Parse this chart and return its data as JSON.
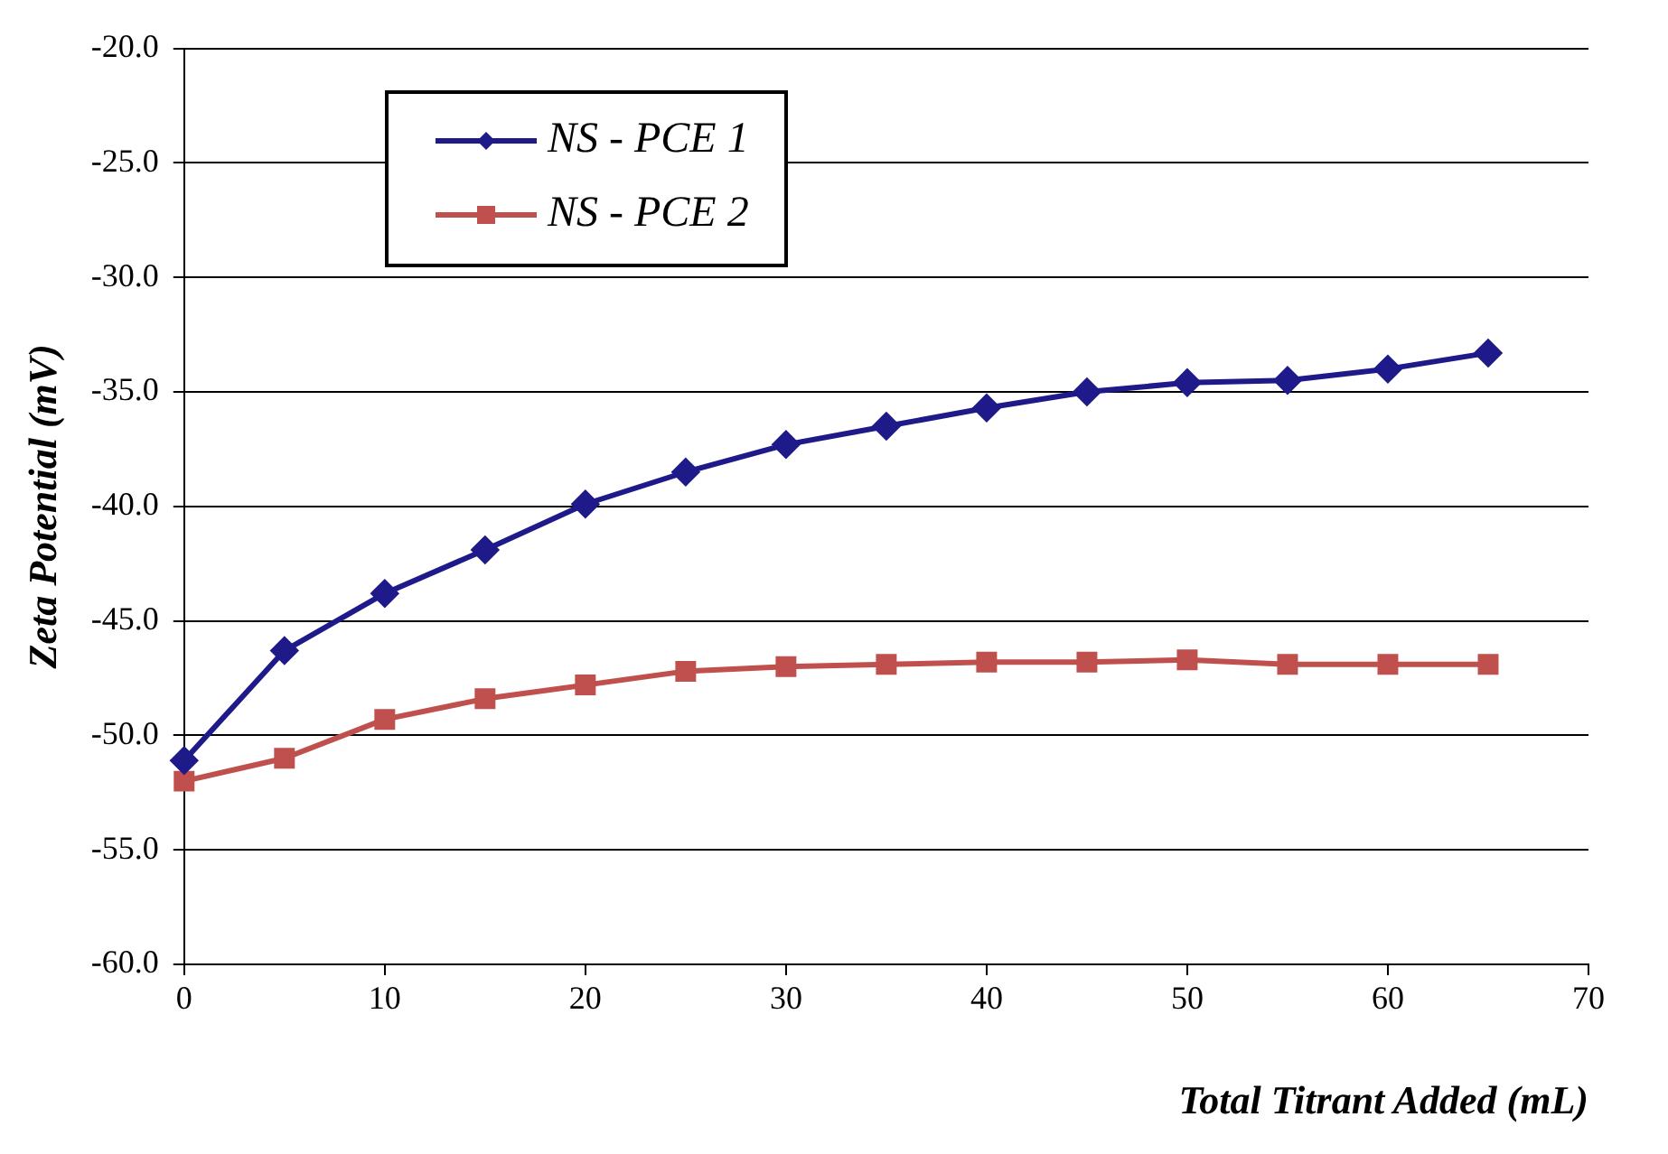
{
  "chart_data": {
    "type": "line",
    "xlabel": "Total Titrant Added (mL)",
    "ylabel": "Zeta Potential (mV)",
    "x": [
      0,
      5,
      10,
      15,
      20,
      25,
      30,
      35,
      40,
      45,
      50,
      55,
      60,
      65
    ],
    "series": [
      {
        "name": "NS - PCE 1",
        "color": "#1f1a8a",
        "marker": "diamond",
        "values": [
          -51.1,
          -46.3,
          -43.8,
          -41.9,
          -39.9,
          -38.5,
          -37.3,
          -36.5,
          -35.7,
          -35.0,
          -34.6,
          -34.5,
          -34.0,
          -33.3
        ]
      },
      {
        "name": "NS - PCE 2",
        "color": "#c0504d",
        "marker": "square",
        "values": [
          -52.0,
          -51.0,
          -49.3,
          -48.4,
          -47.8,
          -47.2,
          -47.0,
          -46.9,
          -46.8,
          -46.8,
          -46.7,
          -46.9,
          -46.9,
          -46.9
        ]
      }
    ],
    "xlim": [
      0,
      70
    ],
    "xticks": [
      0,
      10,
      20,
      30,
      40,
      50,
      60,
      70
    ],
    "ylim": [
      -60,
      -20
    ],
    "yticks": [
      {
        "value": -60,
        "label": "-60.0"
      },
      {
        "value": -55,
        "label": "-55.0"
      },
      {
        "value": -50,
        "label": "-50.0"
      },
      {
        "value": -45,
        "label": "-45.0"
      },
      {
        "value": -40,
        "label": "-40.0"
      },
      {
        "value": -35,
        "label": "-35.0"
      },
      {
        "value": -30,
        "label": "-30.0"
      },
      {
        "value": -25,
        "label": "-25.0"
      },
      {
        "value": -20,
        "label": "-20.0"
      }
    ],
    "grid": "y",
    "legend": "top left",
    "line_style": "solid"
  }
}
